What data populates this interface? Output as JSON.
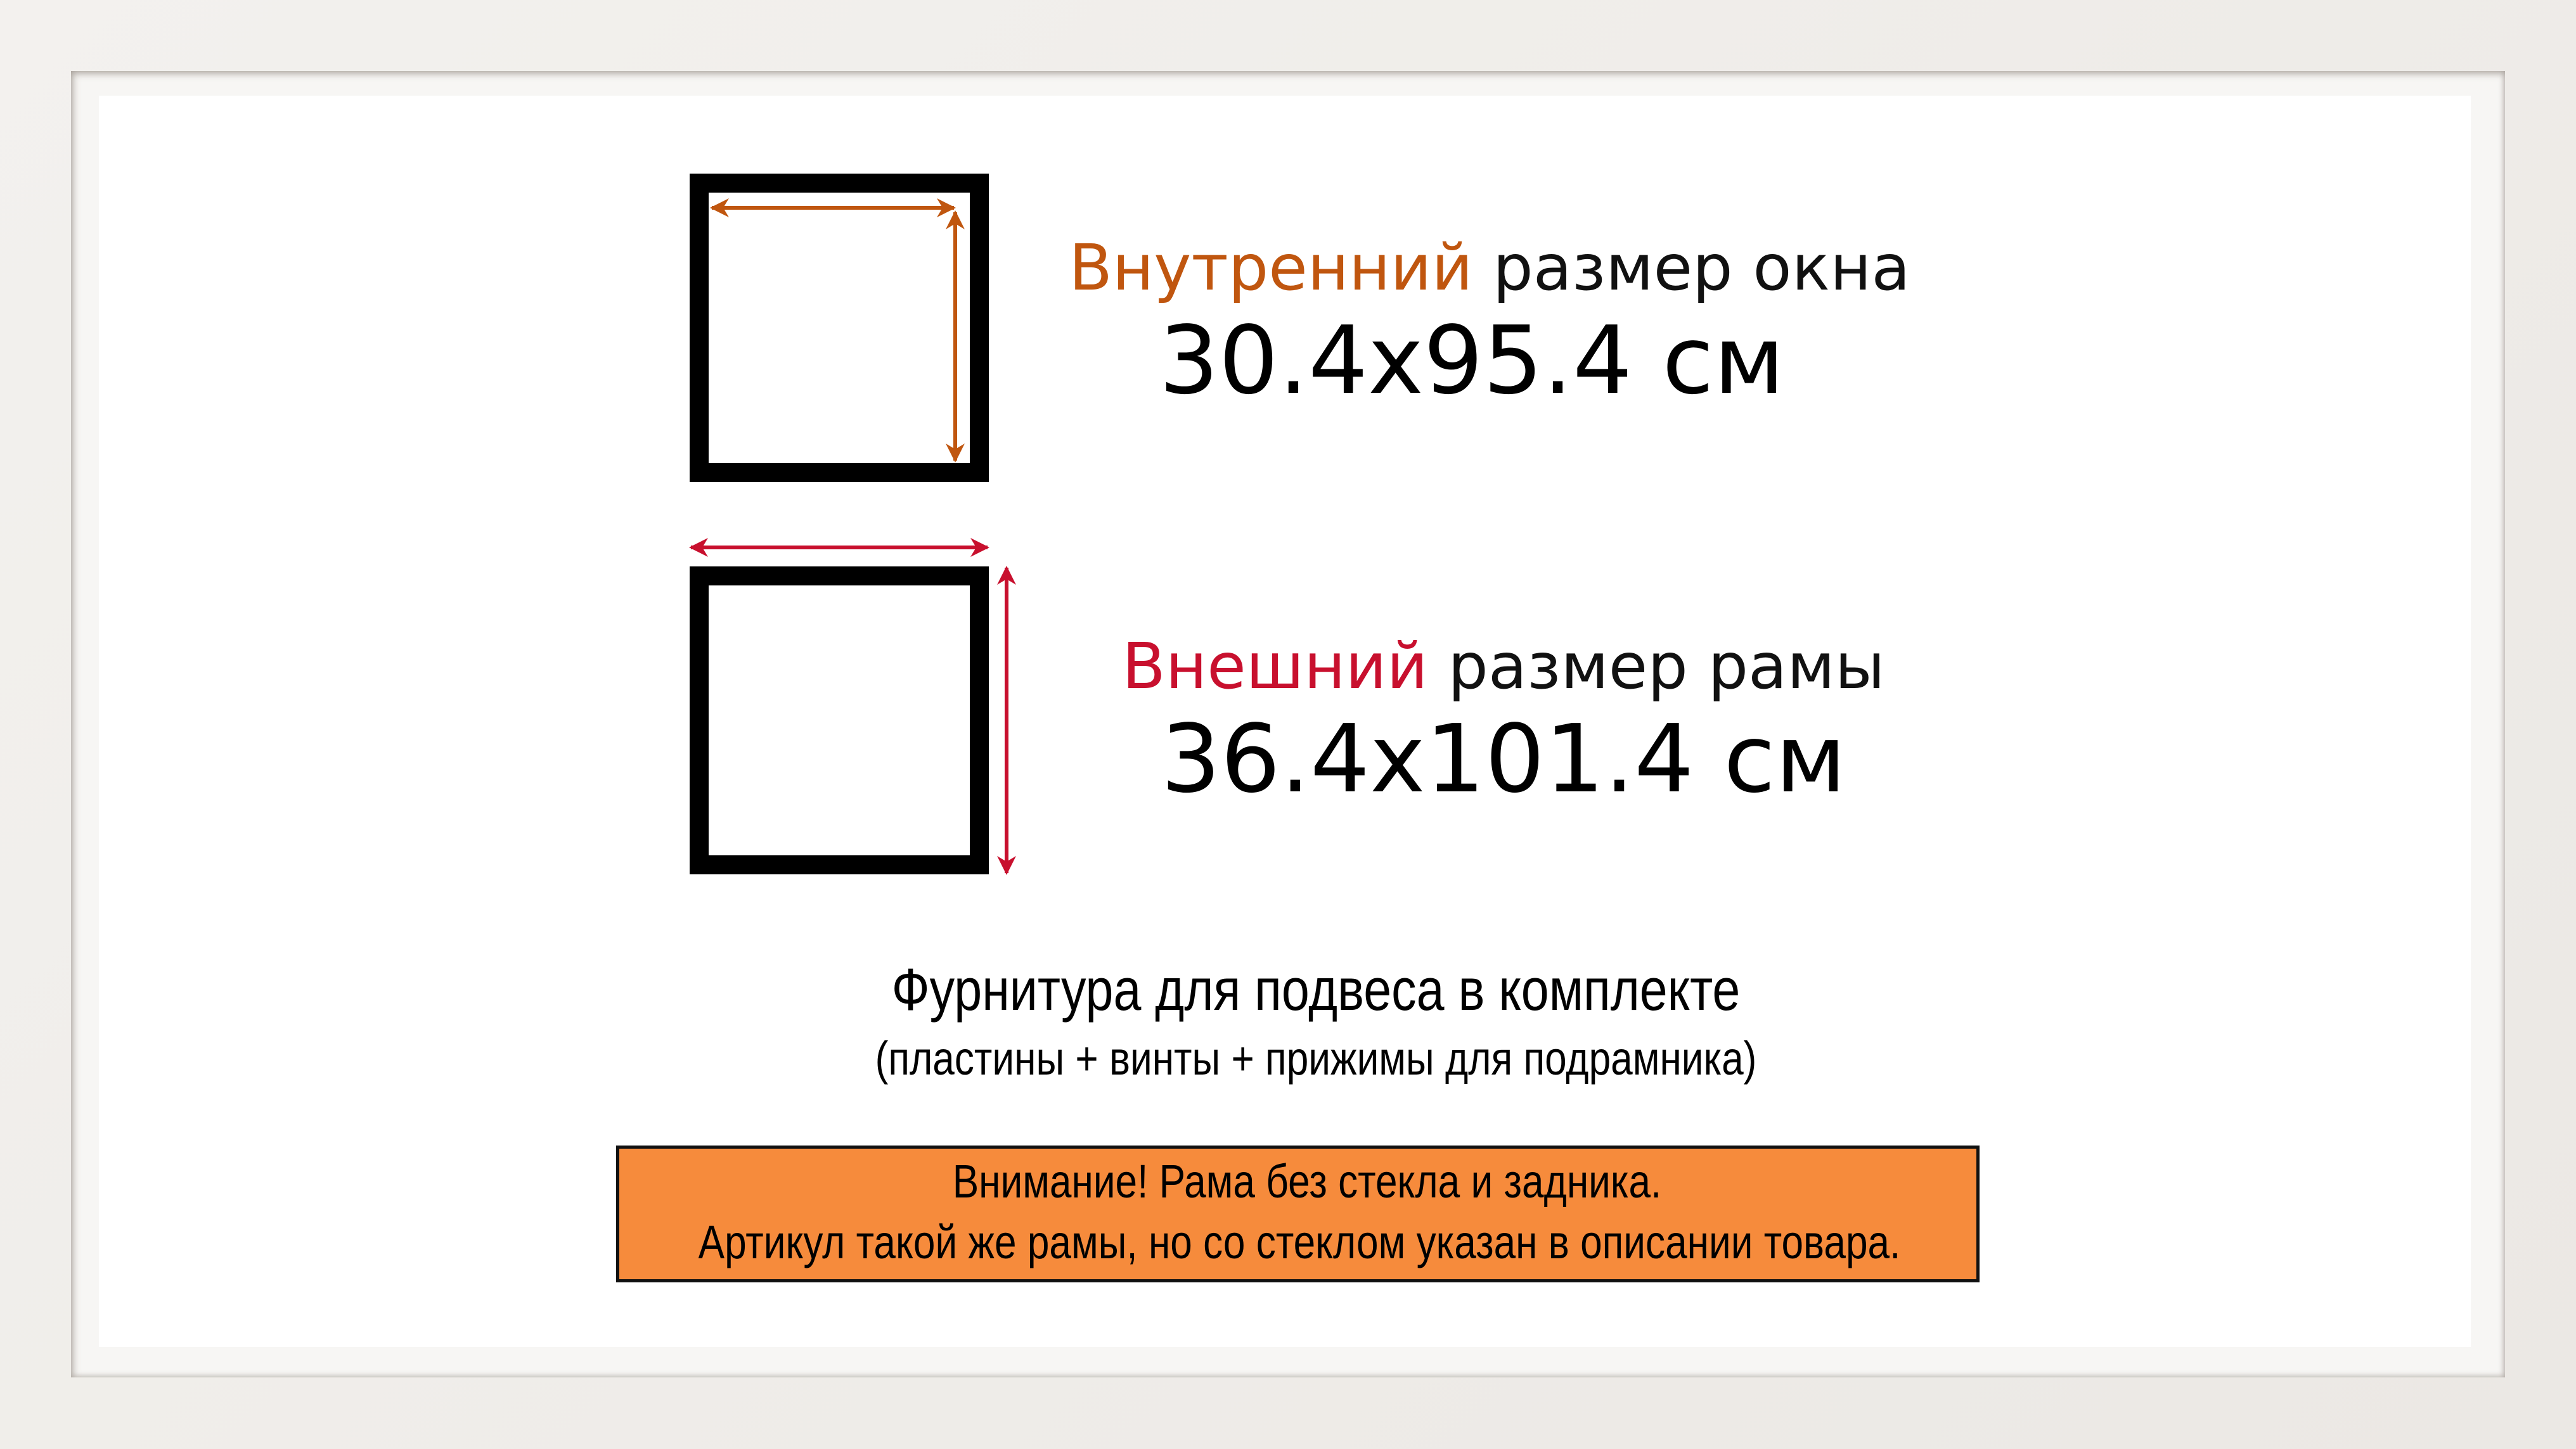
{
  "inner": {
    "highlight": "Внутренний",
    "rest": " размер окна",
    "dimensions": "30.4x95.4 см",
    "color": "#c0560f"
  },
  "outer": {
    "highlight": "Внешний",
    "rest": " размер рамы",
    "dimensions": "36.4x101.4 см",
    "color": "#c8102e"
  },
  "hardware": {
    "title": "Фурнитура для подвеса в комплекте",
    "subtitle": "(пластины + винты + прижимы для подрамника)"
  },
  "notice": {
    "line1": "Внимание! Рама без стекла и задника.",
    "line2": "Артикул такой же рамы, но со стеклом указан в описании товара.",
    "background": "#f68b3c"
  },
  "icons": [
    "inner-size-frame-icon",
    "outer-size-frame-icon",
    "double-arrow-icon"
  ]
}
